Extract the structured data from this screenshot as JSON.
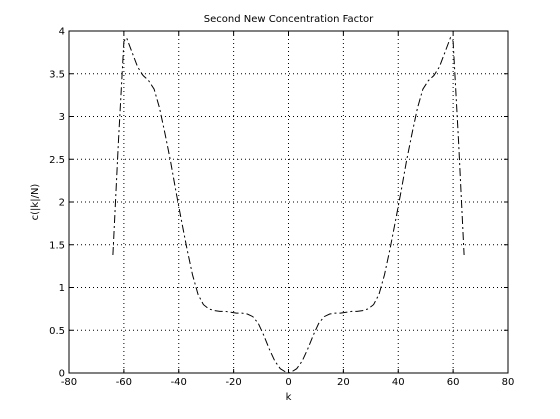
{
  "chart_data": {
    "type": "line",
    "title": "Second New Concentration Factor",
    "xlabel": "k",
    "ylabel": "c(|k|/N)",
    "xlim": [
      -80,
      80
    ],
    "ylim": [
      0,
      4
    ],
    "xticks": [
      -80,
      -60,
      -40,
      -20,
      0,
      20,
      40,
      60,
      80
    ],
    "yticks": [
      0,
      0.5,
      1,
      1.5,
      2,
      2.5,
      3,
      3.5,
      4
    ],
    "xtick_labels": [
      "-80",
      "-60",
      "-40",
      "-20",
      "0",
      "20",
      "40",
      "60",
      "80"
    ],
    "ytick_labels": [
      "0",
      "0.5",
      "1",
      "1.5",
      "2",
      "2.5",
      "3",
      "3.5",
      "4"
    ],
    "grid": true,
    "line_style": "dash-dot",
    "series": [
      {
        "x": [
          -64,
          -62,
          -60,
          -59,
          -57,
          -55,
          -53,
          -51,
          -49,
          -47,
          -45,
          -43,
          -41,
          -39,
          -37,
          -35,
          -33,
          -31,
          -29,
          -27,
          -25,
          -23,
          -21,
          -19,
          -17,
          -15,
          -13,
          -11,
          -9,
          -7,
          -5,
          -3,
          -1,
          0,
          1,
          3,
          5,
          7,
          9,
          11,
          13,
          15,
          17,
          19,
          21,
          23,
          25,
          27,
          29,
          31,
          33,
          35,
          37,
          39,
          41,
          43,
          45,
          47,
          49,
          51,
          53,
          55,
          57,
          59,
          60,
          62,
          64
        ],
        "values": [
          1.38,
          2.7,
          3.88,
          3.92,
          3.75,
          3.58,
          3.48,
          3.42,
          3.32,
          3.1,
          2.8,
          2.48,
          2.12,
          1.78,
          1.45,
          1.15,
          0.92,
          0.8,
          0.75,
          0.73,
          0.72,
          0.72,
          0.71,
          0.7,
          0.7,
          0.69,
          0.66,
          0.58,
          0.44,
          0.28,
          0.14,
          0.05,
          0.01,
          0.0,
          0.01,
          0.05,
          0.14,
          0.28,
          0.44,
          0.58,
          0.66,
          0.69,
          0.7,
          0.7,
          0.71,
          0.72,
          0.72,
          0.73,
          0.75,
          0.8,
          0.92,
          1.15,
          1.45,
          1.78,
          2.12,
          2.48,
          2.8,
          3.1,
          3.32,
          3.42,
          3.48,
          3.58,
          3.75,
          3.92,
          3.88,
          2.7,
          1.38
        ]
      }
    ]
  }
}
